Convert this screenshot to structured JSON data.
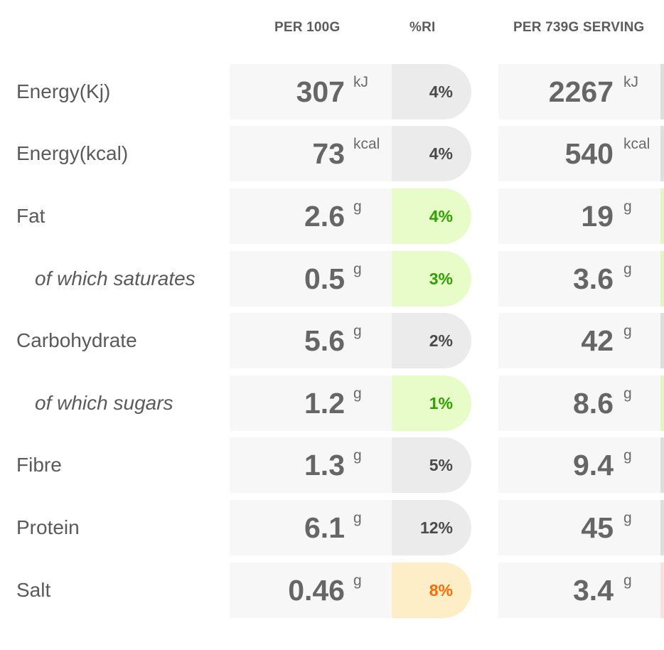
{
  "headers": {
    "per100": "PER 100G",
    "ri": "%RI",
    "serving": "PER 739G SERVING"
  },
  "colors": {
    "neutral_pill": "#ebebeb",
    "green_pill": "#e7fcc8",
    "green_text": "#2ea300",
    "orange_pill": "#fdeec8",
    "orange_text": "#ff6a00",
    "red_indicator": "#fbe0e0"
  },
  "rows": [
    {
      "label": "Energy(Kj)",
      "sub": false,
      "per100": "307",
      "per100_unit": "kJ",
      "ri": "4%",
      "ri_level": "neutral",
      "serving": "2267",
      "serving_unit": "kJ"
    },
    {
      "label": "Energy(kcal)",
      "sub": false,
      "per100": "73",
      "per100_unit": "kcal",
      "ri": "4%",
      "ri_level": "neutral",
      "serving": "540",
      "serving_unit": "kcal"
    },
    {
      "label": "Fat",
      "sub": false,
      "per100": "2.6",
      "per100_unit": "g",
      "ri": "4%",
      "ri_level": "green",
      "serving": "19",
      "serving_unit": "g"
    },
    {
      "label": "of which saturates",
      "sub": true,
      "per100": "0.5",
      "per100_unit": "g",
      "ri": "3%",
      "ri_level": "green",
      "serving": "3.6",
      "serving_unit": "g"
    },
    {
      "label": "Carbohydrate",
      "sub": false,
      "per100": "5.6",
      "per100_unit": "g",
      "ri": "2%",
      "ri_level": "neutral",
      "serving": "42",
      "serving_unit": "g"
    },
    {
      "label": "of which sugars",
      "sub": true,
      "per100": "1.2",
      "per100_unit": "g",
      "ri": "1%",
      "ri_level": "green",
      "serving": "8.6",
      "serving_unit": "g"
    },
    {
      "label": "Fibre",
      "sub": false,
      "per100": "1.3",
      "per100_unit": "g",
      "ri": "5%",
      "ri_level": "neutral",
      "serving": "9.4",
      "serving_unit": "g"
    },
    {
      "label": "Protein",
      "sub": false,
      "per100": "6.1",
      "per100_unit": "g",
      "ri": "12%",
      "ri_level": "neutral",
      "serving": "45",
      "serving_unit": "g"
    },
    {
      "label": "Salt",
      "sub": false,
      "per100": "0.46",
      "per100_unit": "g",
      "ri": "8%",
      "ri_level": "orange",
      "serving": "3.4",
      "serving_unit": "g"
    }
  ]
}
